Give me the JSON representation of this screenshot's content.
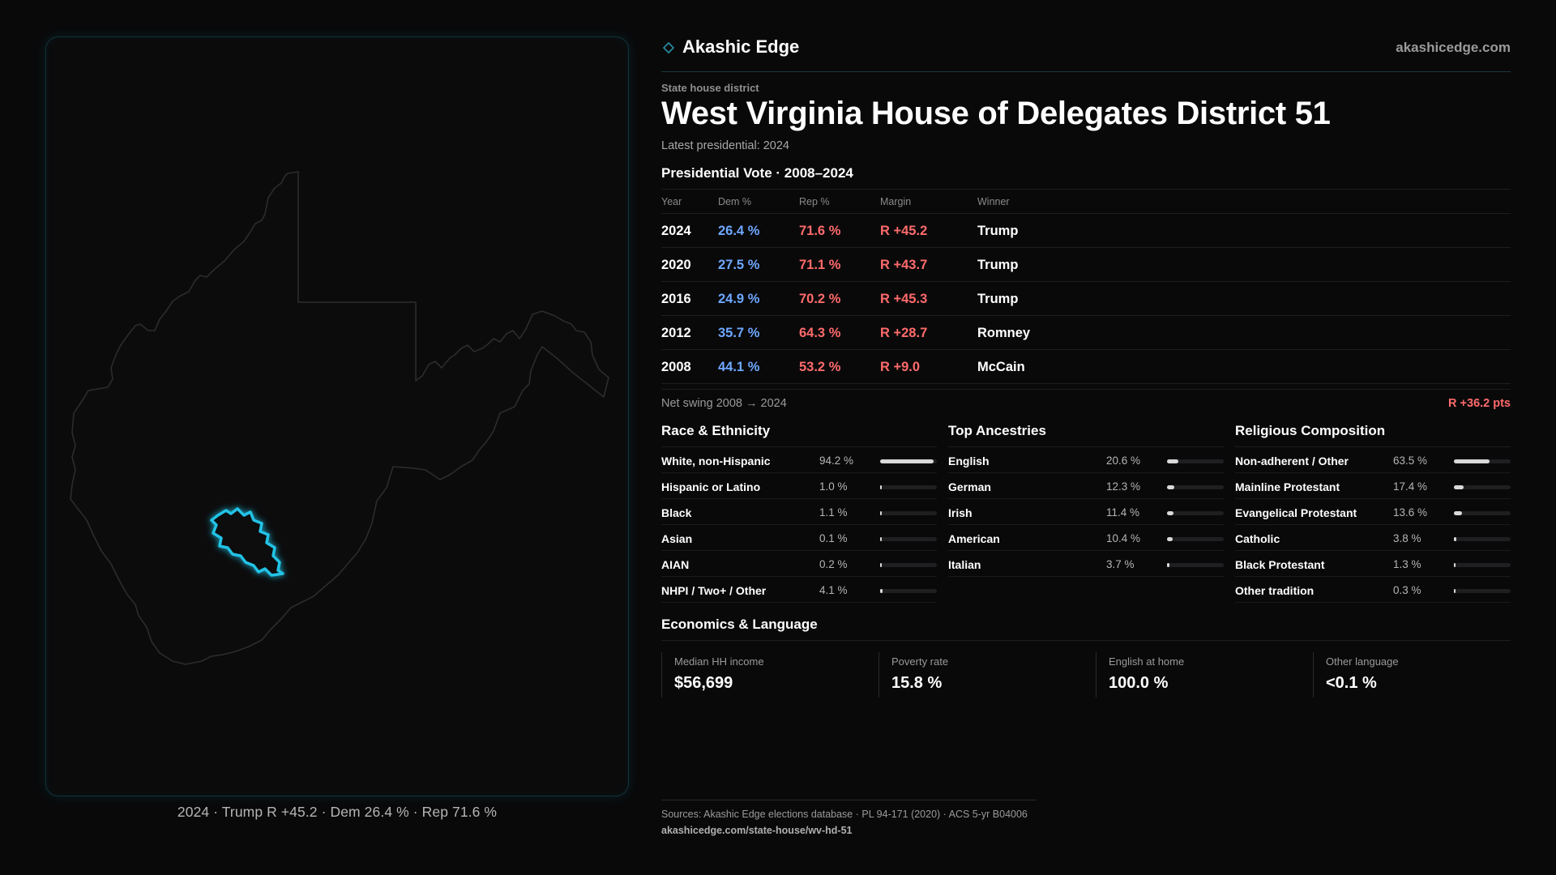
{
  "brand": {
    "name": "Akashic Edge",
    "url": "akashicedge.com"
  },
  "kicker": "State house district",
  "title": "West Virginia House of Delegates District 51",
  "latest": "Latest presidential: 2024",
  "vote": {
    "heading": "Presidential Vote · 2008–2024",
    "columns": {
      "year": "Year",
      "dem": "Dem %",
      "rep": "Rep %",
      "margin": "Margin",
      "winner": "Winner"
    },
    "rows": [
      {
        "year": "2024",
        "dem": "26.4 %",
        "rep": "71.6 %",
        "margin": "R +45.2",
        "winner": "Trump"
      },
      {
        "year": "2020",
        "dem": "27.5 %",
        "rep": "71.1 %",
        "margin": "R +43.7",
        "winner": "Trump"
      },
      {
        "year": "2016",
        "dem": "24.9 %",
        "rep": "70.2 %",
        "margin": "R +45.3",
        "winner": "Trump"
      },
      {
        "year": "2012",
        "dem": "35.7 %",
        "rep": "64.3 %",
        "margin": "R +28.7",
        "winner": "Romney"
      },
      {
        "year": "2008",
        "dem": "44.1 %",
        "rep": "53.2 %",
        "margin": "R +9.0",
        "winner": "McCain"
      }
    ]
  },
  "swing": {
    "label": "Net swing 2008 → 2024",
    "value": "R +36.2 pts"
  },
  "race": {
    "heading": "Race & Ethnicity",
    "items": [
      {
        "label": "White, non-Hispanic",
        "value": "94.2 %",
        "share": 0.942
      },
      {
        "label": "Hispanic or Latino",
        "value": "1.0 %",
        "share": 0.01
      },
      {
        "label": "Black",
        "value": "1.1 %",
        "share": 0.011
      },
      {
        "label": "Asian",
        "value": "0.1 %",
        "share": 0.001
      },
      {
        "label": "AIAN",
        "value": "0.2 %",
        "share": 0.002
      },
      {
        "label": "NHPI / Two+ / Other",
        "value": "4.1 %",
        "share": 0.041
      }
    ]
  },
  "ancestry": {
    "heading": "Top Ancestries",
    "items": [
      {
        "label": "English",
        "value": "20.6 %",
        "share": 0.206
      },
      {
        "label": "German",
        "value": "12.3 %",
        "share": 0.123
      },
      {
        "label": "Irish",
        "value": "11.4 %",
        "share": 0.114
      },
      {
        "label": "American",
        "value": "10.4 %",
        "share": 0.104
      },
      {
        "label": "Italian",
        "value": "3.7 %",
        "share": 0.037
      }
    ]
  },
  "religion": {
    "heading": "Religious Composition",
    "items": [
      {
        "label": "Non-adherent / Other",
        "value": "63.5 %",
        "share": 0.635
      },
      {
        "label": "Mainline Protestant",
        "value": "17.4 %",
        "share": 0.174
      },
      {
        "label": "Evangelical Protestant",
        "value": "13.6 %",
        "share": 0.136
      },
      {
        "label": "Catholic",
        "value": "3.8 %",
        "share": 0.038
      },
      {
        "label": "Black Protestant",
        "value": "1.3 %",
        "share": 0.013
      },
      {
        "label": "Other tradition",
        "value": "0.3 %",
        "share": 0.003
      }
    ]
  },
  "economics": {
    "heading": "Economics & Language",
    "cards": [
      {
        "label": "Median HH income",
        "value": "$56,699"
      },
      {
        "label": "Poverty rate",
        "value": "15.8 %"
      },
      {
        "label": "English at home",
        "value": "100.0 %"
      },
      {
        "label": "Other language",
        "value": "<0.1 %"
      }
    ]
  },
  "map": {
    "caption": "2024 · Trump R +45.2 · Dem 26.4 % · Rep 71.6 %",
    "state_stroke": "#2c2c2e",
    "district_stroke": "#22c3e6"
  },
  "sources": {
    "line": "Sources: Akashic Edge elections database · PL 94-171 (2020) · ACS 5-yr B04006",
    "url": "akashicedge.com/state-house/wv-hd-51"
  }
}
